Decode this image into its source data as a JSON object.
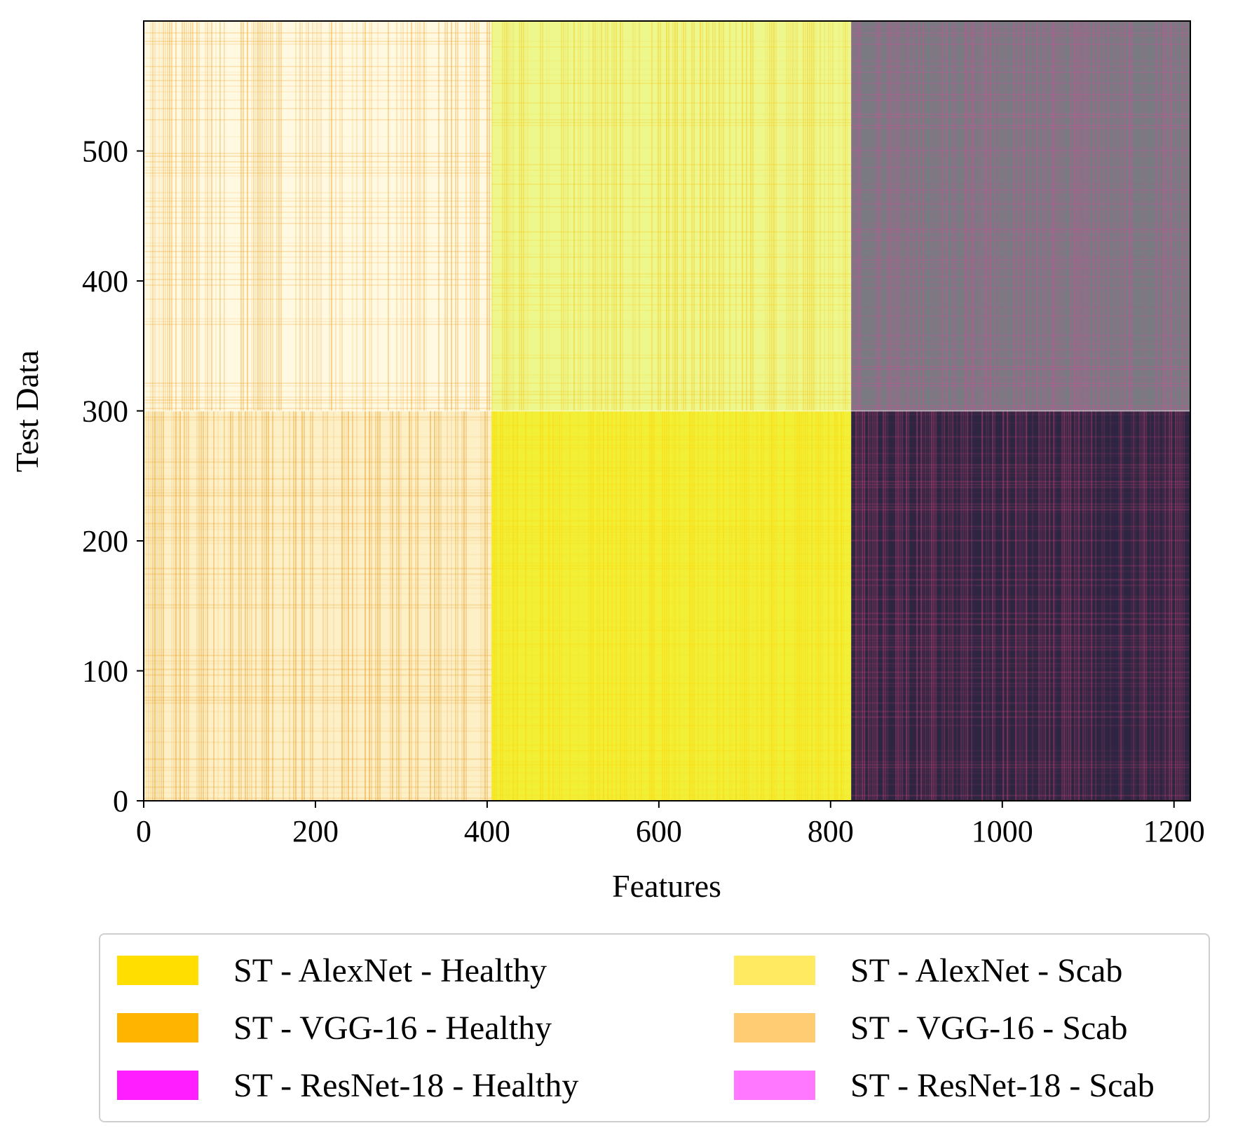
{
  "chart_data": {
    "type": "heatmap",
    "title": "",
    "xlabel": "Features",
    "ylabel": "Test Data",
    "xlim": [
      0,
      1219
    ],
    "ylim": [
      0,
      600
    ],
    "x_ticks": [
      0,
      200,
      400,
      600,
      800,
      1000,
      1200
    ],
    "y_ticks": [
      0,
      100,
      200,
      300,
      400,
      500
    ],
    "x_tick_labels": [
      "0",
      "200",
      "400",
      "600",
      "800",
      "1000",
      "1200"
    ],
    "y_tick_labels": [
      "0",
      "100",
      "200",
      "300",
      "400",
      "500"
    ],
    "blocks": [
      {
        "name": "ST - AlexNet - Healthy",
        "x_range": [
          405,
          824
        ],
        "y_range": [
          0,
          300
        ],
        "base_color": "#f2ef37",
        "mark_color": "#ffd200"
      },
      {
        "name": "ST - AlexNet - Scab",
        "x_range": [
          405,
          824
        ],
        "y_range": [
          300,
          600
        ],
        "base_color": "#eef78c",
        "mark_color": "#f5c40e"
      },
      {
        "name": "ST - VGG-16 - Healthy",
        "x_range": [
          0,
          405
        ],
        "y_range": [
          0,
          300
        ],
        "base_color": "#fdf0c7",
        "mark_color": "#e8900a"
      },
      {
        "name": "ST - VGG-16 - Scab",
        "x_range": [
          0,
          405
        ],
        "y_range": [
          300,
          600
        ],
        "base_color": "#fff9e1",
        "mark_color": "#f0a020"
      },
      {
        "name": "ST - ResNet-18 - Healthy",
        "x_range": [
          824,
          1219
        ],
        "y_range": [
          0,
          300
        ],
        "base_color": "#2e2543",
        "mark_color": "#e0467e"
      },
      {
        "name": "ST - ResNet-18 - Scab",
        "x_range": [
          824,
          1219
        ],
        "y_range": [
          300,
          600
        ],
        "base_color": "#7a7a82",
        "mark_color": "#d44c9b"
      }
    ],
    "legend": {
      "placement": "below",
      "columns": 2,
      "entries": [
        {
          "label": "ST - AlexNet - Healthy",
          "color": "#ffde00"
        },
        {
          "label": "ST - VGG-16 - Healthy",
          "color": "#ffb400"
        },
        {
          "label": "ST - ResNet-18 - Healthy",
          "color": "#ff1eff"
        },
        {
          "label": "ST - AlexNet - Scab",
          "color": "#ffea62"
        },
        {
          "label": "ST - VGG-16 - Scab",
          "color": "#ffcb73"
        },
        {
          "label": "ST - ResNet-18 - Scab",
          "color": "#ff78ff"
        }
      ]
    }
  }
}
